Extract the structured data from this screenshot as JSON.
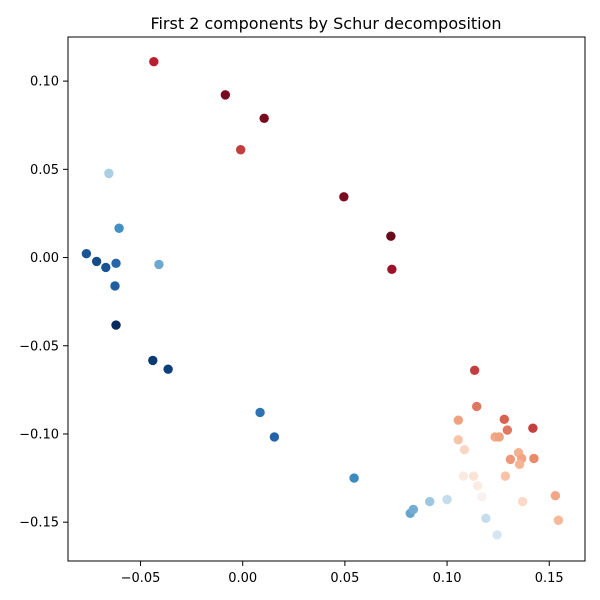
{
  "chart_data": {
    "type": "scatter",
    "title": "First 2 components by Schur decomposition",
    "xlabel": "",
    "ylabel": "",
    "xlim": [
      -0.0855,
      0.1675
    ],
    "ylim": [
      -0.172,
      0.125
    ],
    "x_ticks": [
      -0.05,
      0.0,
      0.05,
      0.1,
      0.15
    ],
    "x_tick_labels": [
      "−0.05",
      "0.00",
      "0.05",
      "0.10",
      "0.15"
    ],
    "y_ticks": [
      0.1,
      0.05,
      0.0,
      -0.05,
      -0.1,
      -0.15
    ],
    "y_tick_labels": [
      "0.10",
      "0.05",
      "0.00",
      "−0.05",
      "−0.10",
      "−0.15"
    ],
    "grid": false,
    "colormap": "diverging red-blue",
    "points": [
      {
        "x": -0.0435,
        "y": 0.111,
        "color": "#b8202f"
      },
      {
        "x": -0.0085,
        "y": 0.0922,
        "color": "#7a0a20"
      },
      {
        "x": 0.0105,
        "y": 0.0789,
        "color": "#7a0a20"
      },
      {
        "x": -0.001,
        "y": 0.0611,
        "color": "#c33d3f"
      },
      {
        "x": 0.0495,
        "y": 0.0344,
        "color": "#7a0a20"
      },
      {
        "x": 0.0725,
        "y": 0.0121,
        "color": "#6a0a1f"
      },
      {
        "x": 0.073,
        "y": -0.0067,
        "color": "#9d1228"
      },
      {
        "x": -0.0655,
        "y": 0.0477,
        "color": "#a9cfe5"
      },
      {
        "x": -0.0605,
        "y": 0.0166,
        "color": "#4390c3"
      },
      {
        "x": -0.0765,
        "y": 0.0022,
        "color": "#185496"
      },
      {
        "x": -0.0715,
        "y": -0.0022,
        "color": "#134c89"
      },
      {
        "x": -0.067,
        "y": -0.0056,
        "color": "#195596"
      },
      {
        "x": -0.062,
        "y": -0.0033,
        "color": "#2566aa"
      },
      {
        "x": -0.041,
        "y": -0.0039,
        "color": "#6ba9cf"
      },
      {
        "x": -0.0625,
        "y": -0.0161,
        "color": "#1f5e9f"
      },
      {
        "x": -0.062,
        "y": -0.0383,
        "color": "#082a5c"
      },
      {
        "x": -0.044,
        "y": -0.0583,
        "color": "#0a3a72"
      },
      {
        "x": -0.0365,
        "y": -0.0633,
        "color": "#0f3f78"
      },
      {
        "x": 0.0085,
        "y": -0.0878,
        "color": "#2c74b4"
      },
      {
        "x": 0.0155,
        "y": -0.1017,
        "color": "#2463a7"
      },
      {
        "x": 0.0545,
        "y": -0.125,
        "color": "#3d8ac0"
      },
      {
        "x": 0.082,
        "y": -0.145,
        "color": "#66a6cd"
      },
      {
        "x": 0.0835,
        "y": -0.1428,
        "color": "#74acd2"
      },
      {
        "x": 0.0915,
        "y": -0.1383,
        "color": "#9cc8e1"
      },
      {
        "x": 0.1,
        "y": -0.1372,
        "color": "#c4dcec"
      },
      {
        "x": 0.119,
        "y": -0.1478,
        "color": "#c5dded"
      },
      {
        "x": 0.1245,
        "y": -0.1572,
        "color": "#d4e6f1"
      },
      {
        "x": 0.1135,
        "y": -0.0639,
        "color": "#c33d3f"
      },
      {
        "x": 0.1145,
        "y": -0.0844,
        "color": "#de7660"
      },
      {
        "x": 0.1055,
        "y": -0.0922,
        "color": "#f0a27f"
      },
      {
        "x": 0.128,
        "y": -0.0917,
        "color": "#d9634f"
      },
      {
        "x": 0.1295,
        "y": -0.0978,
        "color": "#df7762"
      },
      {
        "x": 0.142,
        "y": -0.0967,
        "color": "#c3403f"
      },
      {
        "x": 0.1235,
        "y": -0.1017,
        "color": "#f4a886"
      },
      {
        "x": 0.1255,
        "y": -0.1017,
        "color": "#f0a27f"
      },
      {
        "x": 0.1055,
        "y": -0.1033,
        "color": "#f7c4a8"
      },
      {
        "x": 0.1085,
        "y": -0.1089,
        "color": "#fbd6c3"
      },
      {
        "x": 0.135,
        "y": -0.1106,
        "color": "#f4b08f"
      },
      {
        "x": 0.131,
        "y": -0.1144,
        "color": "#ee9878"
      },
      {
        "x": 0.1365,
        "y": -0.1139,
        "color": "#f2a586"
      },
      {
        "x": 0.1425,
        "y": -0.1139,
        "color": "#e98a6b"
      },
      {
        "x": 0.1355,
        "y": -0.1172,
        "color": "#f5b494"
      },
      {
        "x": 0.108,
        "y": -0.1239,
        "color": "#fbeae0"
      },
      {
        "x": 0.113,
        "y": -0.1239,
        "color": "#fbe3d6"
      },
      {
        "x": 0.1285,
        "y": -0.1239,
        "color": "#f7c4a8"
      },
      {
        "x": 0.115,
        "y": -0.1294,
        "color": "#fcebe2"
      },
      {
        "x": 0.117,
        "y": -0.1356,
        "color": "#f7f2ef"
      },
      {
        "x": 0.137,
        "y": -0.1383,
        "color": "#fad9c6"
      },
      {
        "x": 0.153,
        "y": -0.135,
        "color": "#f2a686"
      },
      {
        "x": 0.1545,
        "y": -0.1489,
        "color": "#f7b99a"
      }
    ]
  }
}
